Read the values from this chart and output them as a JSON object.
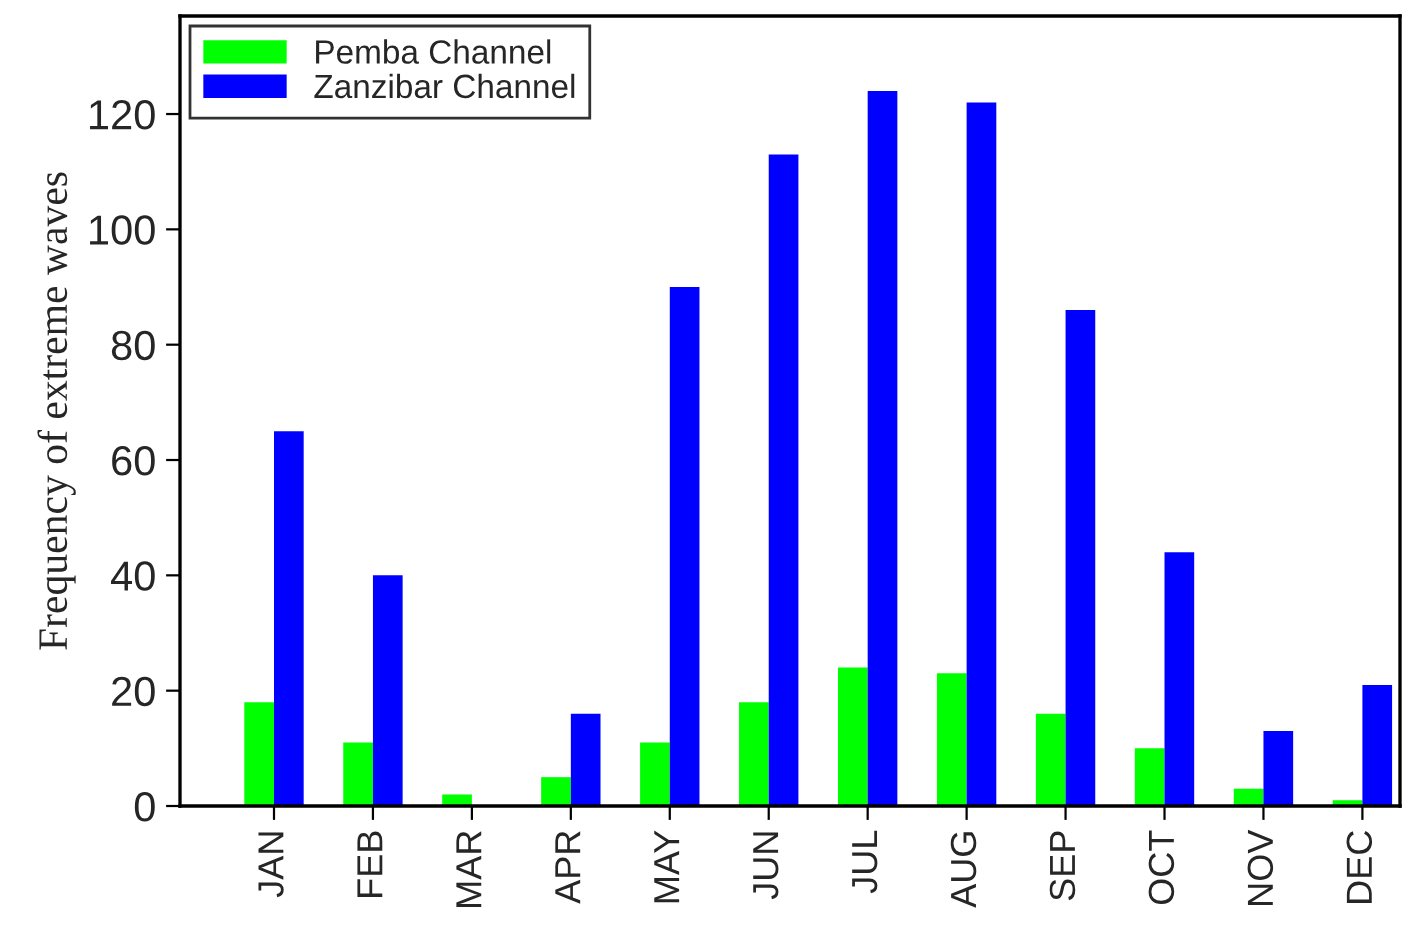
{
  "chart_data": {
    "type": "bar",
    "ylabel": "Frequency of extreme waves",
    "categories": [
      "JAN",
      "FEB",
      "MAR",
      "APR",
      "MAY",
      "JUN",
      "JUL",
      "AUG",
      "SEP",
      "OCT",
      "NOV",
      "DEC"
    ],
    "series": [
      {
        "name": "Pemba Channel",
        "color": "#00ff00",
        "values": [
          18,
          11,
          2,
          5,
          11,
          18,
          24,
          23,
          16,
          10,
          3,
          1
        ]
      },
      {
        "name": "Zanzibar Channel",
        "color": "#0000ff",
        "values": [
          65,
          40,
          null,
          16,
          90,
          113,
          124,
          122,
          86,
          44,
          13,
          21
        ]
      }
    ],
    "ylim": [
      0,
      137
    ],
    "yticks": [
      0,
      20,
      40,
      60,
      80,
      100,
      120
    ],
    "grid": false,
    "legend": "top left"
  }
}
